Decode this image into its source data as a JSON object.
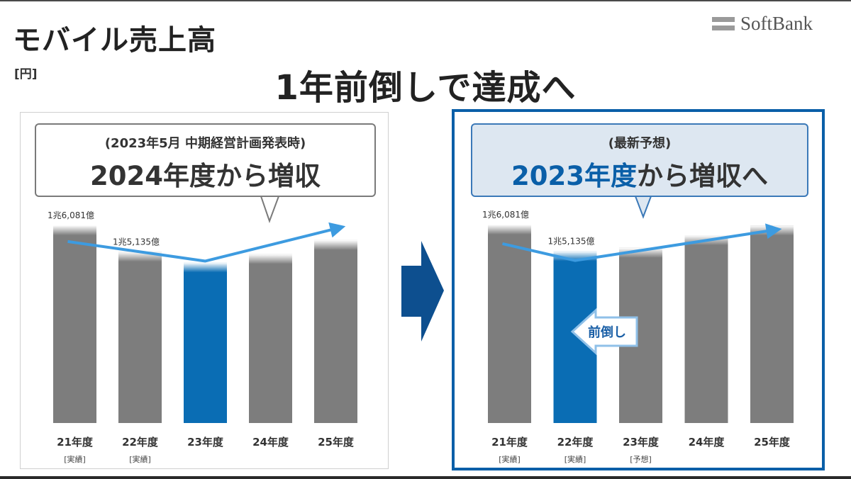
{
  "page": {
    "title": "モバイル売上高",
    "unit": "[円]",
    "headline": "1年前倒しで達成へ",
    "brand": "SoftBank",
    "colors": {
      "accent": "#0a6db4",
      "bar": "#7d7d7d",
      "trend": "#3d9be0",
      "frame": "#0a5fa8"
    }
  },
  "left_panel": {
    "callout_sub": "(2023年5月 中期経営計画発表時)",
    "callout_main": "2024年度から増収"
  },
  "right_panel": {
    "callout_sub": "(最新予想)",
    "callout_main_highlight": "2023年度",
    "callout_main_rest": "から増収へ",
    "shift_label": "前倒し"
  },
  "chart_data": [
    {
      "type": "bar",
      "title": "2024年度から増収",
      "categories": [
        "21年度",
        "22年度",
        "23年度",
        "24年度",
        "25年度"
      ],
      "category_notes": [
        "[実績]",
        "[実績]",
        "",
        "",
        ""
      ],
      "values": [
        16081,
        15135,
        14750,
        15050,
        15550
      ],
      "value_labels": [
        "1兆6,081億",
        "1兆5,135億",
        "",
        "",
        ""
      ],
      "highlight_index": 2,
      "trend_line": [
        15500,
        null,
        14800,
        null,
        16000
      ],
      "unit": "円"
    },
    {
      "type": "bar",
      "title": "2023年度から増収へ",
      "categories": [
        "21年度",
        "22年度",
        "23年度",
        "24年度",
        "25年度"
      ],
      "category_notes": [
        "[実績]",
        "[実績]",
        "[予想]",
        "",
        ""
      ],
      "values": [
        16081,
        15135,
        15250,
        15700,
        16050
      ],
      "value_labels": [
        "1兆6,081億",
        "1兆5,135億",
        "",
        "",
        ""
      ],
      "highlight_index": 1,
      "trend_line": [
        15400,
        14800,
        null,
        null,
        15900
      ],
      "unit": "円"
    }
  ]
}
